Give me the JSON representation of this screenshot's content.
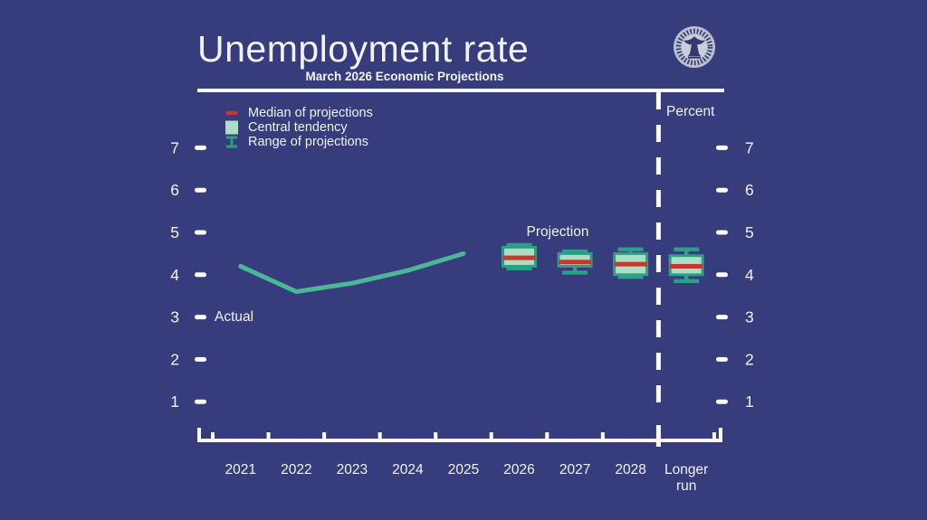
{
  "header": {
    "title": "Unemployment rate",
    "subtitle": "March 2026 Economic Projections"
  },
  "legend": {
    "items": [
      {
        "id": "median",
        "label": "Median of projections"
      },
      {
        "id": "central-tendency",
        "label": "Central tendency"
      },
      {
        "id": "range",
        "label": "Range of projections"
      }
    ]
  },
  "annotations": {
    "actual": "Actual",
    "projection": "Projection",
    "percent": "Percent"
  },
  "colors": {
    "background": "#363c7c",
    "axis_white": "#ffffff",
    "text_white": "#f2f2f4",
    "actual_line": "#4ab795",
    "range_whisker": "#2e9e86",
    "central_tendency_fill": "#abdfc5",
    "median_red": "#ce3427",
    "seal_ring": "#b9bfce",
    "seal_inner": "#c9ced9",
    "seal_dark": "#333a6e"
  },
  "chart_data": {
    "type": "line",
    "title": "Unemployment rate",
    "subtitle": "March 2026 Economic Projections",
    "ylabel": "Percent",
    "ylim": [
      0.5,
      7.6
    ],
    "y_ticks": [
      7,
      6,
      5,
      4,
      3,
      2,
      1
    ],
    "grid": false,
    "legend_position": "top-left",
    "categories": [
      "2021",
      "2022",
      "2023",
      "2024",
      "2025",
      "2026",
      "2027",
      "2028",
      "Longer run"
    ],
    "separator_before": "Longer run",
    "actual": {
      "label": "Actual",
      "years": [
        "2021",
        "2022",
        "2023",
        "2024",
        "2025"
      ],
      "values": [
        4.2,
        3.6,
        3.8,
        4.1,
        4.5
      ]
    },
    "projections": [
      {
        "year": "2026",
        "median": 4.4,
        "central_tendency": [
          4.2,
          4.65
        ],
        "range": [
          4.15,
          4.7
        ]
      },
      {
        "year": "2027",
        "median": 4.3,
        "central_tendency": [
          4.2,
          4.5
        ],
        "range": [
          4.05,
          4.55
        ]
      },
      {
        "year": "2028",
        "median": 4.25,
        "central_tendency": [
          4.0,
          4.5
        ],
        "range": [
          3.95,
          4.6
        ]
      },
      {
        "year": "Longer run",
        "median": 4.2,
        "central_tendency": [
          4.0,
          4.45
        ],
        "range": [
          3.85,
          4.6
        ]
      }
    ]
  }
}
